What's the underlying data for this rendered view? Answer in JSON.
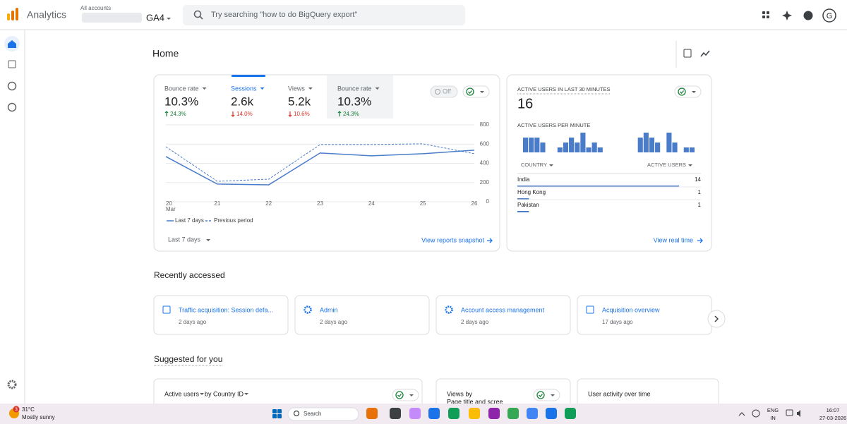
{
  "header": {
    "product": "Analytics",
    "account_label": "All accounts",
    "property": "GA4",
    "search_placeholder": "Try searching \"how to do BigQuery export\"",
    "avatar": "G"
  },
  "page_title": "Home",
  "overview": {
    "tabs": [
      {
        "label": "Bounce rate",
        "value": "10.3%",
        "change": "24.3%",
        "direction": "up"
      },
      {
        "label": "Sessions",
        "value": "2.6k",
        "change": "14.0%",
        "direction": "down"
      },
      {
        "label": "Views",
        "value": "5.2k",
        "change": "10.6%",
        "direction": "down"
      },
      {
        "label": "Bounce rate",
        "value": "10.3%",
        "change": "24.3%",
        "direction": "up"
      }
    ],
    "toggle": "Off",
    "chart": {
      "type": "line",
      "categories": [
        "20",
        "21",
        "22",
        "23",
        "24",
        "25",
        "26"
      ],
      "x_sublabel": "Mar",
      "ylim": [
        0,
        800
      ],
      "yticks": [
        0,
        200,
        400,
        600,
        800
      ],
      "grid": true,
      "series": [
        {
          "name": "Last 7 days",
          "color": "#4a7cc9",
          "dashed": false,
          "values": [
            470,
            184,
            176,
            507,
            478,
            500,
            537
          ]
        },
        {
          "name": "Previous period",
          "color": "#4a7cc9",
          "dashed": true,
          "values": [
            573,
            213,
            235,
            595,
            595,
            603,
            500
          ]
        }
      ]
    },
    "date_range": "Last 7 days",
    "link": "View reports snapshot"
  },
  "realtime": {
    "title": "ACTIVE USERS IN LAST 30 MINUTES",
    "value": "16",
    "per_minute_title": "ACTIVE USERS PER MINUTE",
    "per_minute": {
      "type": "bar",
      "color": "#4a7cc9",
      "ylim": [
        0,
        4
      ],
      "values": [
        3,
        3,
        3,
        2,
        0,
        0,
        1,
        2,
        3,
        2,
        4,
        1,
        2,
        1,
        0,
        0,
        0,
        0,
        0,
        0,
        3,
        4,
        3,
        2,
        0,
        4,
        2,
        0,
        1,
        1
      ]
    },
    "columns": [
      "COUNTRY",
      "ACTIVE USERS"
    ],
    "rows": [
      {
        "country": "India",
        "value": 14
      },
      {
        "country": "Hong Kong",
        "value": 1
      },
      {
        "country": "Pakistan",
        "value": 1
      }
    ],
    "link": "View real time"
  },
  "recently_accessed": {
    "title": "Recently accessed",
    "items": [
      {
        "title": "Traffic acquisition: Session defa...",
        "time": "2 days ago"
      },
      {
        "title": "Admin",
        "time": "2 days ago"
      },
      {
        "title": "Account access management",
        "time": "2 days ago"
      },
      {
        "title": "Acquisition overview",
        "time": "17 days ago"
      }
    ]
  },
  "suggested": {
    "title": "Suggested for you",
    "cards": [
      {
        "metric": "Active users",
        "dimension": "by Country ID"
      },
      {
        "title": "Views by",
        "subtitle": "Page title and scree"
      },
      {
        "title": "User activity over time"
      }
    ]
  },
  "taskbar": {
    "weather_badge": "3",
    "temperature": "31°C",
    "weather": "Mostly sunny",
    "search": "Search",
    "language": "ENG",
    "region": "IN",
    "time": "16:07",
    "date": "27-03-2026"
  }
}
